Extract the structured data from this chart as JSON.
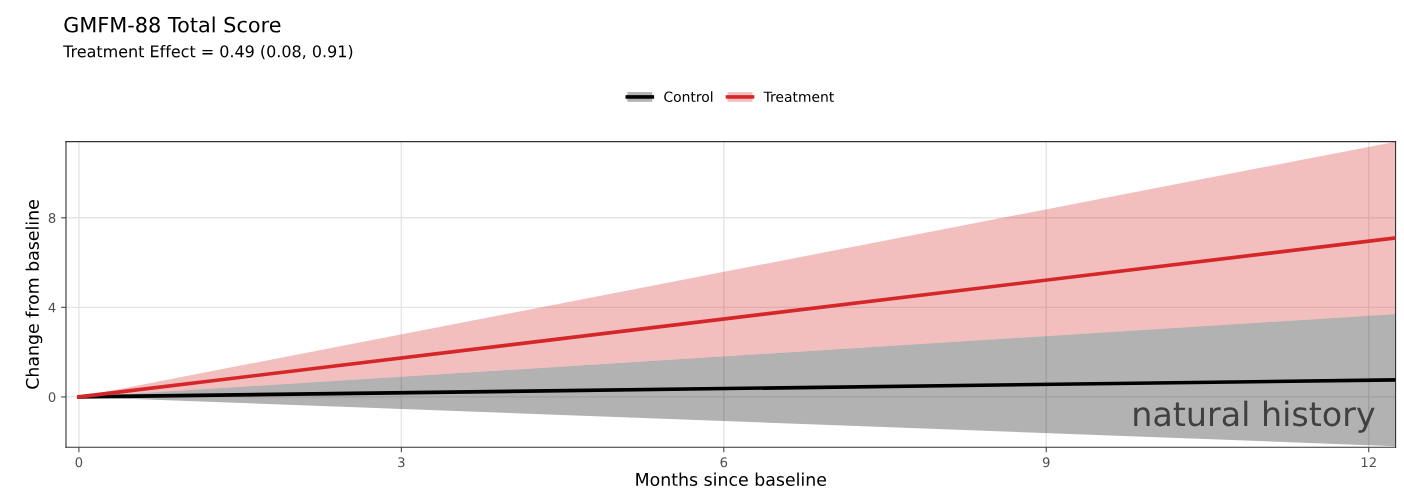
{
  "chart_data": {
    "type": "line",
    "title": "GMFM-88 Total Score",
    "subtitle": "Treatment Effect = 0.49 (0.08, 0.91)",
    "xlabel": "Months since baseline",
    "ylabel": "Change from baseline",
    "x": [
      0,
      12.25
    ],
    "series": [
      {
        "name": "Control",
        "color": "#000000",
        "values": [
          0,
          0.76
        ],
        "lower": [
          0,
          -2.2
        ],
        "upper": [
          0,
          3.7
        ]
      },
      {
        "name": "Treatment",
        "color": "#d62728",
        "values": [
          0,
          7.1
        ],
        "lower": [
          0,
          3.7
        ],
        "upper": [
          0,
          11.4
        ]
      }
    ],
    "xlim": [
      -0.12,
      12.25
    ],
    "ylim": [
      -2.25,
      11.4
    ],
    "xticks": [
      0,
      3,
      6,
      9,
      12
    ],
    "yticks": [
      0,
      4,
      8
    ],
    "annotations": [
      "natural history"
    ],
    "grid": true,
    "legend": "top",
    "marker": "none",
    "line_style": "solid"
  }
}
